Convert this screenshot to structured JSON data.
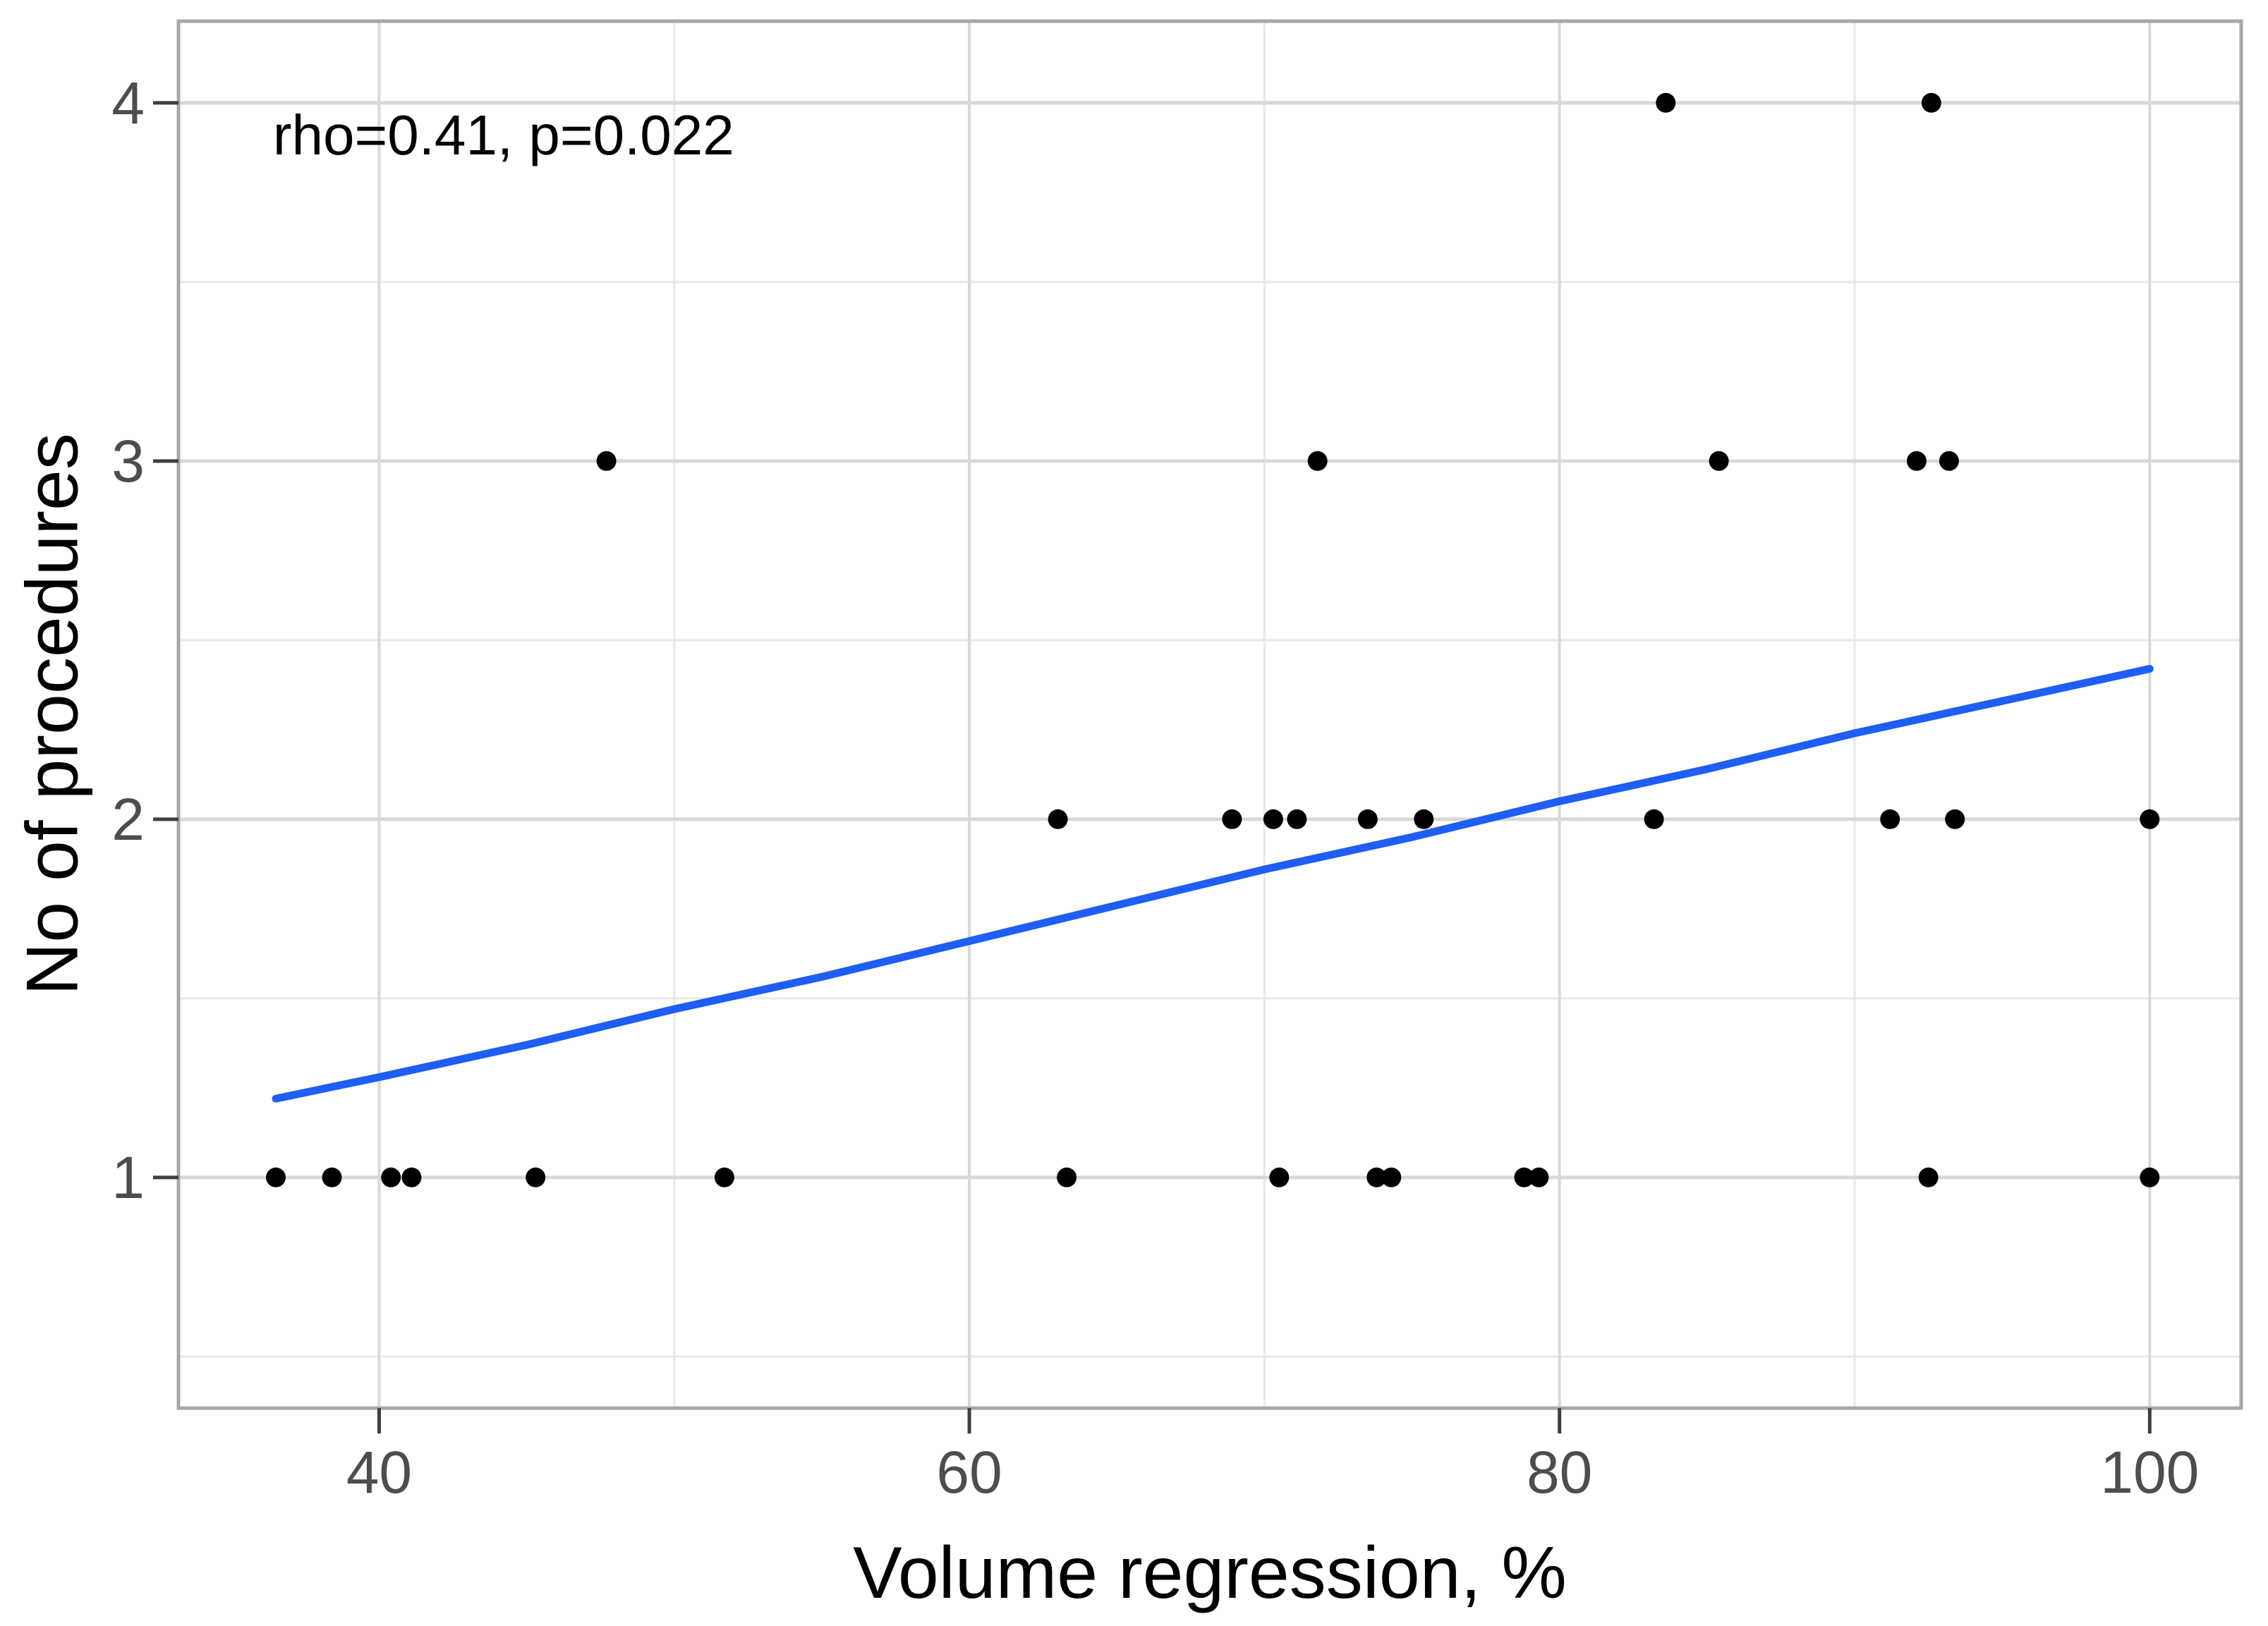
{
  "chart_data": {
    "type": "scatter",
    "title": "",
    "xlabel": "Volume regression, %",
    "ylabel": "No of procedures",
    "annotation": {
      "text": "rho=0.41, p=0.022",
      "x": 36.4,
      "y": 3.91
    },
    "x_ticks": [
      40,
      60,
      80,
      100
    ],
    "x_minor_gridlines": [
      50,
      70,
      90
    ],
    "y_ticks": [
      1,
      2,
      3,
      4
    ],
    "y_minor_gridlines": [
      0.5,
      1.5,
      2.5,
      3.5
    ],
    "xlim": [
      33.2,
      103.1
    ],
    "ylim": [
      0.356,
      4.228
    ],
    "grid": true,
    "legend": "none",
    "points": [
      [
        36.5,
        1
      ],
      [
        38.4,
        1
      ],
      [
        40.4,
        1
      ],
      [
        41.1,
        1
      ],
      [
        45.3,
        1
      ],
      [
        51.7,
        1
      ],
      [
        63.3,
        1
      ],
      [
        70.5,
        1
      ],
      [
        73.8,
        1
      ],
      [
        74.3,
        1
      ],
      [
        78.8,
        1
      ],
      [
        79.3,
        1
      ],
      [
        92.5,
        1
      ],
      [
        100,
        1
      ],
      [
        63.0,
        2
      ],
      [
        68.9,
        2
      ],
      [
        70.3,
        2
      ],
      [
        71.1,
        2
      ],
      [
        73.5,
        2
      ],
      [
        75.4,
        2
      ],
      [
        83.2,
        2
      ],
      [
        91.2,
        2
      ],
      [
        93.4,
        2
      ],
      [
        100,
        2
      ],
      [
        47.7,
        3
      ],
      [
        71.8,
        3
      ],
      [
        85.4,
        3
      ],
      [
        92.1,
        3
      ],
      [
        93.2,
        3
      ],
      [
        83.6,
        4
      ],
      [
        92.6,
        4
      ]
    ],
    "smooth_line": [
      [
        36.5,
        1.22
      ],
      [
        40,
        1.28
      ],
      [
        45,
        1.37
      ],
      [
        50,
        1.47
      ],
      [
        55,
        1.56
      ],
      [
        60,
        1.66
      ],
      [
        65,
        1.76
      ],
      [
        70,
        1.86
      ],
      [
        75,
        1.95
      ],
      [
        80,
        2.05
      ],
      [
        85,
        2.14
      ],
      [
        90,
        2.24
      ],
      [
        95,
        2.33
      ],
      [
        100,
        2.42
      ]
    ],
    "style": {
      "point_color": "#000000",
      "line_color": "#1e5ef5",
      "grid_major_color": "#d8d8d8",
      "grid_minor_color": "#e9e9e9",
      "panel_border_color": "#a8a8a8",
      "tick_color": "#3f3f3f",
      "tick_label_color": "#4d4d4d",
      "background": "#ffffff"
    }
  }
}
